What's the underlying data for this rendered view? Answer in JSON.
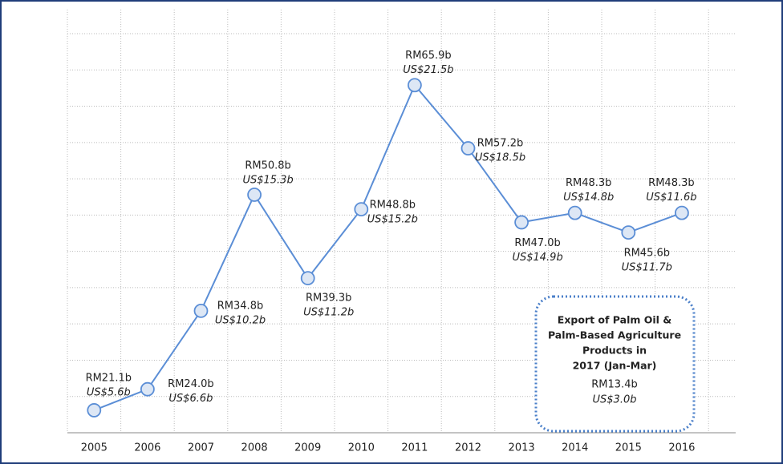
{
  "chart_data": {
    "type": "line",
    "categories": [
      "2005",
      "2006",
      "2007",
      "2008",
      "2009",
      "2010",
      "2011",
      "2012",
      "2013",
      "2014",
      "2015",
      "2016"
    ],
    "series": [
      {
        "name": null,
        "color": "#5b8ed6",
        "values": [
          21.1,
          24.0,
          34.8,
          50.8,
          39.3,
          48.8,
          65.9,
          57.2,
          47.0,
          48.3,
          45.6,
          48.3
        ],
        "value_labels": [
          "RM21.1b",
          "RM24.0b",
          "RM34.8b",
          "RM50.8b",
          "RM39.3b",
          "RM48.8b",
          "RM65.9b",
          "RM57.2b",
          "RM47.0b",
          "RM48.3b",
          "RM45.6b",
          "RM48.3b"
        ],
        "usd_labels": [
          "US$5.6b",
          "US$6.6b",
          "US$10.2b",
          "US$15.3b",
          "US$11.2b",
          "US$15.2b",
          "US$21.5b",
          "US$18.5b",
          "US$14.9b",
          "US$14.8b",
          "US$11.7b",
          "US$11.6b"
        ]
      }
    ],
    "ylim": [
      18,
      73
    ],
    "grid": true,
    "annotation": {
      "title_lines": [
        "Export of Palm Oil &",
        "Palm-Based Agriculture",
        "Products in",
        "2017 (Jan-Mar)"
      ],
      "rm": "RM13.4b",
      "usd": "US$3.0b"
    }
  }
}
